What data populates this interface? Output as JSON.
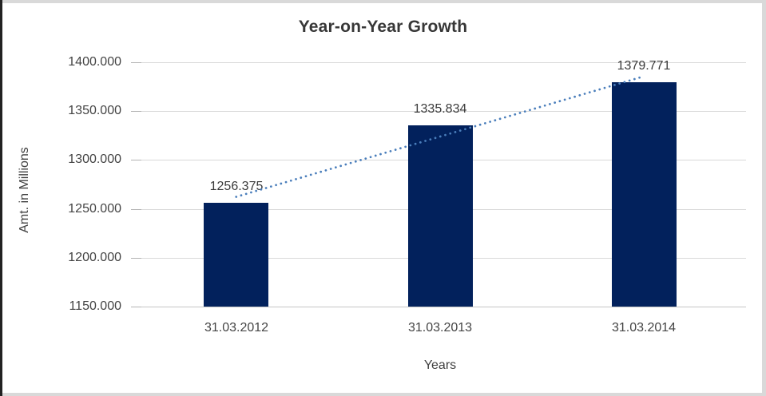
{
  "chart": {
    "title": "Year-on-Year Growth",
    "x_axis_title": "Years",
    "y_axis_title": "Amt. in Millions"
  },
  "chart_data": {
    "type": "bar",
    "title": "Year-on-Year Growth",
    "xlabel": "Years",
    "ylabel": "Amt. in Millions",
    "categories": [
      "31.03.2012",
      "31.03.2013",
      "31.03.2014"
    ],
    "values": [
      1256.375,
      1335.834,
      1379.771
    ],
    "data_labels": [
      "1256.375",
      "1335.834",
      "1379.771"
    ],
    "y_ticks": [
      "1150.000",
      "1200.000",
      "1250.000",
      "1300.000",
      "1350.000",
      "1400.000"
    ],
    "ylim": [
      1150,
      1400
    ],
    "y_step": 50,
    "grid": true,
    "legend": "none",
    "trendline": {
      "type": "linear",
      "style": "dotted",
      "color": "#4a7ebb"
    },
    "colors": {
      "bar": "#02215c",
      "gridline": "#d9d9d9",
      "axis_line": "#c6c6c6",
      "tick_mark": "#b3b3b3",
      "text": "#404040",
      "frame_left": "#222222",
      "frame_gray": "#d9d9d9"
    }
  }
}
